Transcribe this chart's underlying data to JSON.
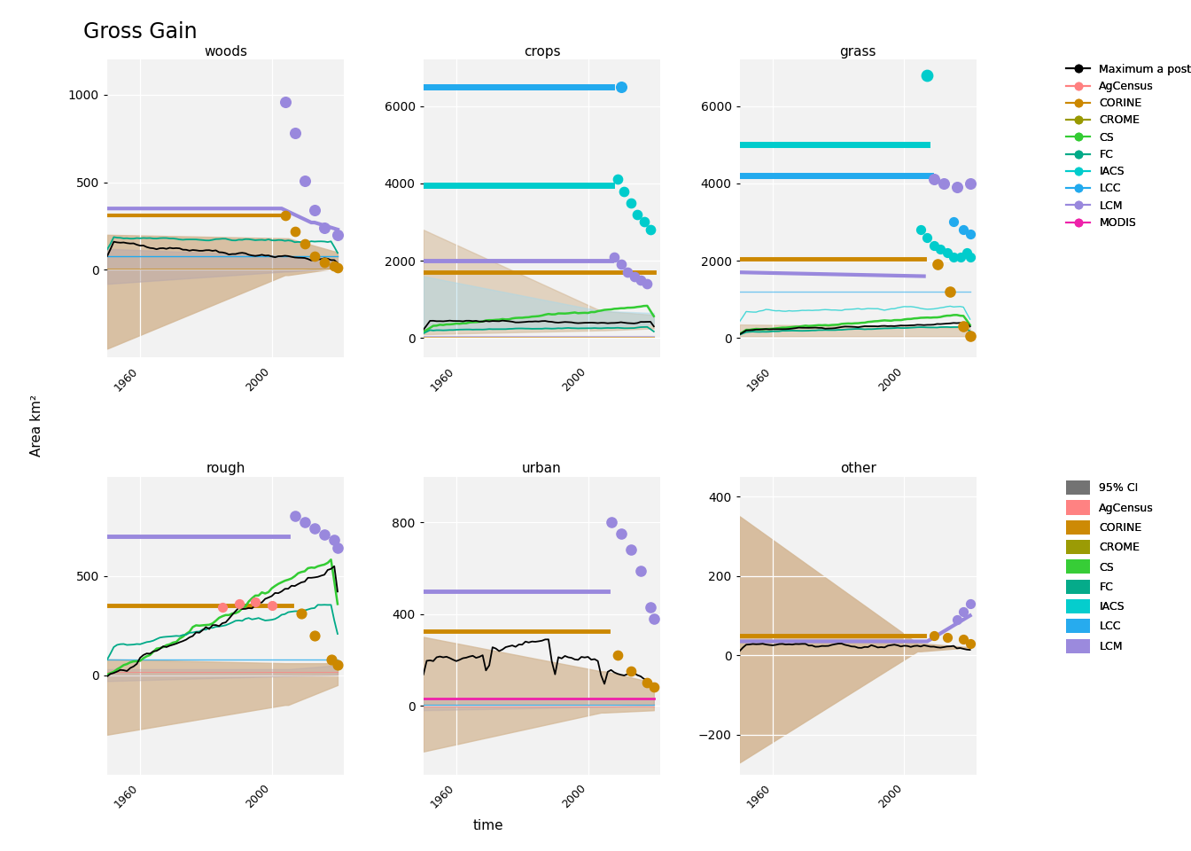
{
  "title": "Gross Gain",
  "xlabel": "time",
  "ylabel": "Area km²",
  "subplots": [
    "woods",
    "crops",
    "grass",
    "rough",
    "urban",
    "other"
  ],
  "colors": {
    "AgCensus": "#FF8080",
    "CORINE": "#CC8800",
    "CROME": "#999900",
    "CS": "#33CC33",
    "FC": "#00AA88",
    "IACS": "#00CCCC",
    "LCC": "#22AAEE",
    "LCM": "#9988DD",
    "MODIS": "#EE22AA",
    "MAP": "#000000",
    "CI_line": "#555555",
    "CI_band": "#BBBBBB",
    "posterior_band": "#D4B896",
    "posterior_grey": "#BBAAAA"
  },
  "ylims": {
    "woods": [
      -500,
      1200
    ],
    "crops": [
      -500,
      7200
    ],
    "grass": [
      -500,
      7200
    ],
    "rough": [
      -500,
      1000
    ],
    "urban": [
      -300,
      1000
    ],
    "other": [
      -300,
      450
    ]
  },
  "yticks": {
    "woods": [
      0,
      500,
      1000
    ],
    "crops": [
      0,
      2000,
      4000,
      6000
    ],
    "grass": [
      0,
      2000,
      4000,
      6000
    ],
    "rough": [
      0,
      500
    ],
    "urban": [
      0,
      400,
      800
    ],
    "other": [
      -200,
      0,
      200,
      400
    ]
  },
  "xlim": [
    1950,
    2022
  ],
  "xticks": [
    1960,
    2000
  ]
}
